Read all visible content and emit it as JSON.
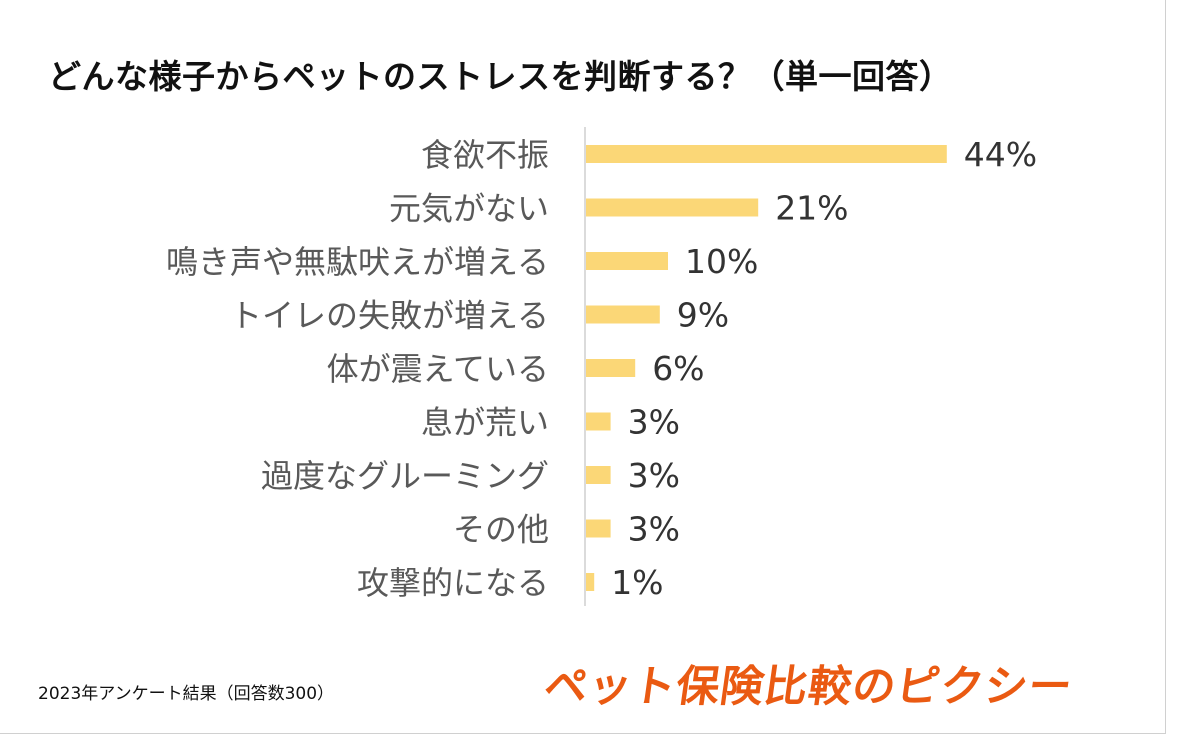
{
  "colors": {
    "bar": "#fbd777",
    "axis": "#cfcfcf",
    "category_text": "#595959",
    "value_text": "#333333",
    "brand": "#ea5a12"
  },
  "title": "どんな様子からペットのストレスを判断する？（単一回答）",
  "footnote": "2023年アンケート結果（回答数300）",
  "brand_logo": "ペット保険比較のピクシー",
  "chart_data": {
    "type": "bar",
    "orientation": "horizontal",
    "title": "どんな様子からペットのストレスを判断する？（単一回答）",
    "categories": [
      "食欲不振",
      "元気がない",
      "鳴き声や無駄吠えが増える",
      "トイレの失敗が増える",
      "体が震えている",
      "息が荒い",
      "過度なグルーミング",
      "その他",
      "攻撃的になる"
    ],
    "values": [
      44,
      21,
      10,
      9,
      6,
      3,
      3,
      3,
      1
    ],
    "value_labels": [
      "44%",
      "21%",
      "10%",
      "9%",
      "6%",
      "3%",
      "3%",
      "3%",
      "1%"
    ],
    "unit": "%",
    "xlim": [
      0,
      100
    ],
    "grid": false,
    "legend": "none"
  }
}
